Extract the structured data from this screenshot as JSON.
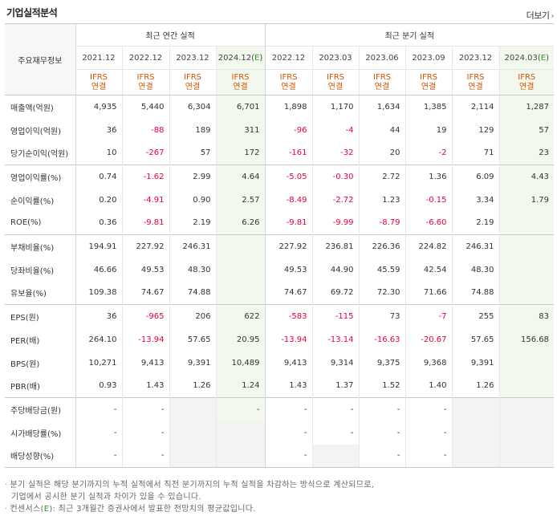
{
  "header": {
    "title": "기업실적분석",
    "more_label": "더보기"
  },
  "table": {
    "label_header": "주요재무정보",
    "group_annual": "최근 연간 실적",
    "group_quarter": "최근 분기 실적",
    "periods": [
      "2021.12",
      "2022.12",
      "2023.12",
      "2024.12(E)",
      "2022.12",
      "2023.03",
      "2023.06",
      "2023.09",
      "2023.12",
      "2024.03(E)"
    ],
    "ifrs_line1": "IFRS",
    "ifrs_line2": "연결",
    "rows": [
      {
        "label": "매출액(억원)",
        "values": [
          "4,935",
          "5,440",
          "6,304",
          "6,701",
          "1,898",
          "1,170",
          "1,634",
          "1,385",
          "2,114",
          "1,287"
        ]
      },
      {
        "label": "영업이익(억원)",
        "values": [
          "36",
          "-88",
          "189",
          "311",
          "-96",
          "-4",
          "44",
          "19",
          "129",
          "57"
        ]
      },
      {
        "label": "당기순이익(억원)",
        "values": [
          "10",
          "-267",
          "57",
          "172",
          "-161",
          "-32",
          "20",
          "-2",
          "71",
          "23"
        ]
      },
      {
        "label": "영업이익률(%)",
        "values": [
          "0.74",
          "-1.62",
          "2.99",
          "4.64",
          "-5.05",
          "-0.30",
          "2.72",
          "1.36",
          "6.09",
          "4.43"
        ]
      },
      {
        "label": "순이익률(%)",
        "values": [
          "0.20",
          "-4.91",
          "0.90",
          "2.57",
          "-8.49",
          "-2.72",
          "1.23",
          "-0.15",
          "3.34",
          "1.79"
        ]
      },
      {
        "label": "ROE(%)",
        "values": [
          "0.36",
          "-9.81",
          "2.19",
          "6.26",
          "-9.81",
          "-9.99",
          "-8.79",
          "-6.60",
          "2.19",
          ""
        ]
      },
      {
        "label": "부채비율(%)",
        "values": [
          "194.91",
          "227.92",
          "246.31",
          "",
          "227.92",
          "236.81",
          "226.36",
          "224.82",
          "246.31",
          ""
        ]
      },
      {
        "label": "당좌비율(%)",
        "values": [
          "46.66",
          "49.53",
          "48.30",
          "",
          "49.53",
          "44.90",
          "45.59",
          "42.54",
          "48.30",
          ""
        ]
      },
      {
        "label": "유보율(%)",
        "values": [
          "109.38",
          "74.67",
          "74.88",
          "",
          "74.67",
          "69.72",
          "72.30",
          "71.66",
          "74.88",
          ""
        ]
      },
      {
        "label": "EPS(원)",
        "values": [
          "36",
          "-965",
          "206",
          "622",
          "-583",
          "-115",
          "73",
          "-7",
          "255",
          "83"
        ]
      },
      {
        "label": "PER(배)",
        "values": [
          "264.10",
          "-13.94",
          "57.65",
          "20.95",
          "-13.94",
          "-13.14",
          "-16.63",
          "-20.67",
          "57.65",
          "156.68"
        ]
      },
      {
        "label": "BPS(원)",
        "values": [
          "10,271",
          "9,413",
          "9,391",
          "10,489",
          "9,413",
          "9,314",
          "9,375",
          "9,368",
          "9,391",
          ""
        ]
      },
      {
        "label": "PBR(배)",
        "values": [
          "0.93",
          "1.43",
          "1.26",
          "1.24",
          "1.43",
          "1.37",
          "1.52",
          "1.40",
          "1.26",
          ""
        ]
      },
      {
        "label": "주당배당금(원)",
        "values": [
          "-",
          "-",
          "",
          "-",
          "-",
          "-",
          "-",
          "-",
          "",
          ""
        ]
      },
      {
        "label": "시가배당률(%)",
        "values": [
          "-",
          "-",
          "",
          "",
          "-",
          "-",
          "-",
          "-",
          "",
          ""
        ]
      },
      {
        "label": "배당성향(%)",
        "values": [
          "-",
          "-",
          "",
          "",
          "-",
          "",
          "-",
          "-",
          "",
          ""
        ]
      }
    ]
  },
  "notes": {
    "line1": "분기 실적은 해당 분기까지의 누적 실적에서 직전 분기까지의 누적 실적을 차감하는 방식으로 계산되므로,",
    "line2": "기업에서 공시한 분기 실적과 차이가 있을 수 있습니다.",
    "line3_prefix": "컨센서스(",
    "line3_e": "E",
    "line3_suffix": "): 최근 3개월간 증권사에서 발표한 전망치의 평균값입니다."
  }
}
